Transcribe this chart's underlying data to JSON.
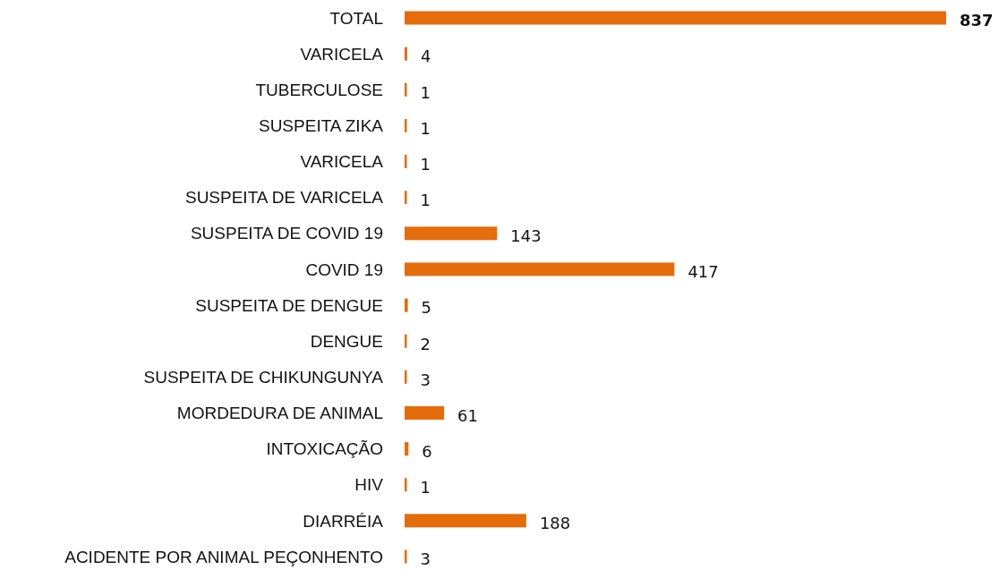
{
  "chart_data": {
    "type": "bar",
    "orientation": "horizontal",
    "data_labels": true,
    "categories": [
      "TOTAL",
      "VARICELA",
      "TUBERCULOSE",
      "SUSPEITA ZIKA",
      "VARICELA",
      "SUSPEITA DE VARICELA",
      "SUSPEITA DE COVID 19",
      "COVID 19",
      "SUSPEITA DE DENGUE",
      "DENGUE",
      "SUSPEITA DE CHIKUNGUNYA",
      "MORDEDURA DE ANIMAL",
      "INTOXICAÇÃO",
      "HIV",
      "DIARRÉIA",
      "ACIDENTE POR ANIMAL PEÇONHENTO"
    ],
    "values": [
      837,
      4,
      1,
      1,
      1,
      1,
      143,
      417,
      5,
      2,
      3,
      61,
      6,
      1,
      188,
      3
    ],
    "color": "#e46c0a"
  }
}
